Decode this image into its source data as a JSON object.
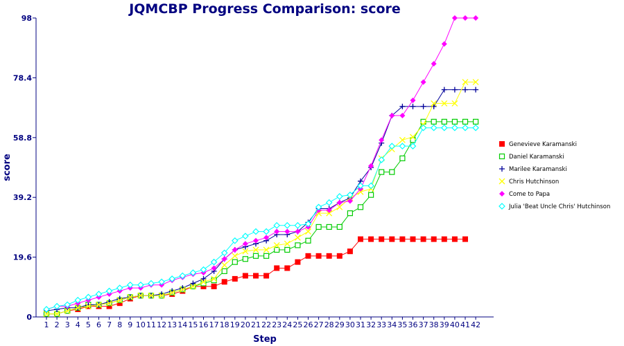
{
  "chart_data": {
    "type": "line",
    "title": "JQMCBP Progress Comparison: score",
    "xlabel": "Step",
    "ylabel": "score",
    "x": [
      1,
      2,
      3,
      4,
      5,
      6,
      7,
      8,
      9,
      10,
      11,
      12,
      13,
      14,
      15,
      16,
      17,
      18,
      19,
      20,
      21,
      22,
      23,
      24,
      25,
      26,
      27,
      28,
      29,
      30,
      31,
      32,
      33,
      34,
      35,
      36,
      37,
      38,
      39,
      40,
      41,
      42
    ],
    "yticks": [
      "0",
      "19.6",
      "39.2",
      "58.8",
      "78.4",
      "98"
    ],
    "ylim": [
      0,
      98
    ],
    "grid": false,
    "legend": "right",
    "series": [
      {
        "name": "Genevieve Karamanski",
        "color": "#ff0000",
        "marker": "square-filled",
        "values": [
          1,
          1,
          2,
          2.5,
          3.5,
          3.5,
          3.5,
          4.5,
          6,
          7,
          7,
          7,
          7.5,
          8.5,
          10,
          10,
          10,
          11.5,
          12.5,
          13.5,
          13.5,
          13.5,
          16,
          16,
          18,
          20,
          20,
          20,
          20,
          21.5,
          25.5,
          25.5,
          25.5,
          25.5,
          25.5,
          25.5,
          25.5,
          25.5,
          25.5,
          25.5,
          25.5,
          null
        ]
      },
      {
        "name": "Daniel Karamanski",
        "color": "#00cc00",
        "marker": "square-open",
        "values": [
          1,
          1,
          2,
          3,
          4,
          4,
          4.5,
          5.5,
          6.5,
          7,
          7,
          7,
          8,
          9,
          10,
          11,
          12,
          15,
          18,
          19,
          20,
          20,
          22,
          22,
          23.5,
          25,
          29.5,
          29.5,
          29.5,
          34,
          36,
          40,
          47.5,
          47.5,
          52,
          58,
          64,
          64,
          64,
          64,
          64,
          64
        ]
      },
      {
        "name": "Marilee Karamanski",
        "color": "#000099",
        "marker": "plus",
        "values": [
          2,
          2.5,
          3,
          3,
          4,
          4,
          5,
          6,
          6.5,
          7,
          7,
          7.5,
          8.5,
          9.5,
          11,
          12.5,
          15,
          19,
          22,
          23,
          24,
          25,
          27,
          27,
          28,
          31,
          35.5,
          35.5,
          37.5,
          39,
          44.5,
          49,
          57,
          66,
          69,
          69,
          69,
          69,
          74.5,
          74.5,
          74.5,
          74.5
        ]
      },
      {
        "name": "Chris Hutchinson",
        "color": "#ffff00",
        "marker": "cross",
        "values": [
          1,
          1,
          2,
          3,
          3.5,
          4,
          4.5,
          5.5,
          6.5,
          7,
          7,
          7,
          8,
          9,
          10,
          11.5,
          12.5,
          17,
          20,
          21.5,
          22,
          22,
          23.5,
          24,
          26,
          28,
          34,
          34,
          36,
          39,
          41,
          42,
          52,
          55,
          58,
          59,
          63,
          70,
          70,
          70,
          77,
          77
        ]
      },
      {
        "name": "Come to Papa",
        "color": "#ff00ff",
        "marker": "diamond-filled",
        "values": [
          2.5,
          3.5,
          3.5,
          4.5,
          5.5,
          6.5,
          7.5,
          8.5,
          9.5,
          9.5,
          10.5,
          10.5,
          12,
          13,
          14,
          14.5,
          16,
          19,
          22,
          24,
          25,
          26,
          28,
          28,
          28,
          29.5,
          35,
          35,
          37.5,
          38,
          42,
          49.5,
          58,
          66,
          66,
          71,
          77,
          83,
          89.5,
          98,
          98,
          98
        ]
      },
      {
        "name": "Julia 'Beat Uncle Chris' Hutchinson",
        "color": "#00ffff",
        "marker": "diamond-open",
        "values": [
          2.5,
          3.5,
          4,
          5.5,
          6.5,
          7.5,
          8.5,
          9.5,
          10.5,
          10.5,
          11,
          11.5,
          12.5,
          13.5,
          14.5,
          15.5,
          18,
          21,
          25,
          26.5,
          28,
          28,
          30,
          30,
          30,
          30.5,
          36,
          37.5,
          39.5,
          40,
          43,
          43,
          51.5,
          56,
          56,
          56,
          62,
          62,
          62,
          62,
          62,
          62
        ]
      }
    ]
  }
}
